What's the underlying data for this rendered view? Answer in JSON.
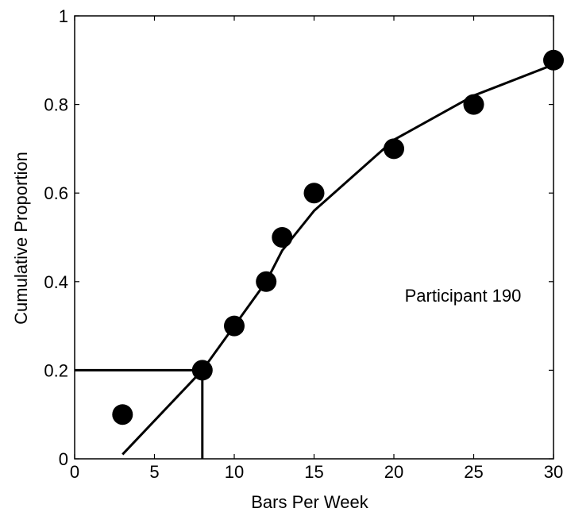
{
  "chart_data": {
    "type": "scatter",
    "title": "",
    "xlabel": "Bars Per Week",
    "ylabel": "Cumulative Proportion",
    "xlim": [
      0,
      30
    ],
    "ylim": [
      0,
      1
    ],
    "x_ticks": [
      0,
      5,
      10,
      15,
      20,
      25,
      30
    ],
    "y_ticks": [
      0,
      0.2,
      0.4,
      0.6,
      0.8,
      1
    ],
    "grid": false,
    "annotation": "Participant 190",
    "points": {
      "x": [
        3,
        8,
        10,
        12,
        13,
        15,
        20,
        25,
        30
      ],
      "y": [
        0.1,
        0.2,
        0.3,
        0.4,
        0.5,
        0.6,
        0.7,
        0.8,
        0.9
      ]
    },
    "fitted_curve": {
      "x": [
        3,
        8,
        10,
        12,
        13,
        15,
        20,
        25,
        30
      ],
      "y": [
        0.01,
        0.2,
        0.3,
        0.4,
        0.47,
        0.56,
        0.72,
        0.82,
        0.89
      ]
    },
    "reference_lines": {
      "x": 8,
      "y": 0.2
    },
    "colors": {
      "marker": "#000000",
      "line": "#000000"
    }
  }
}
